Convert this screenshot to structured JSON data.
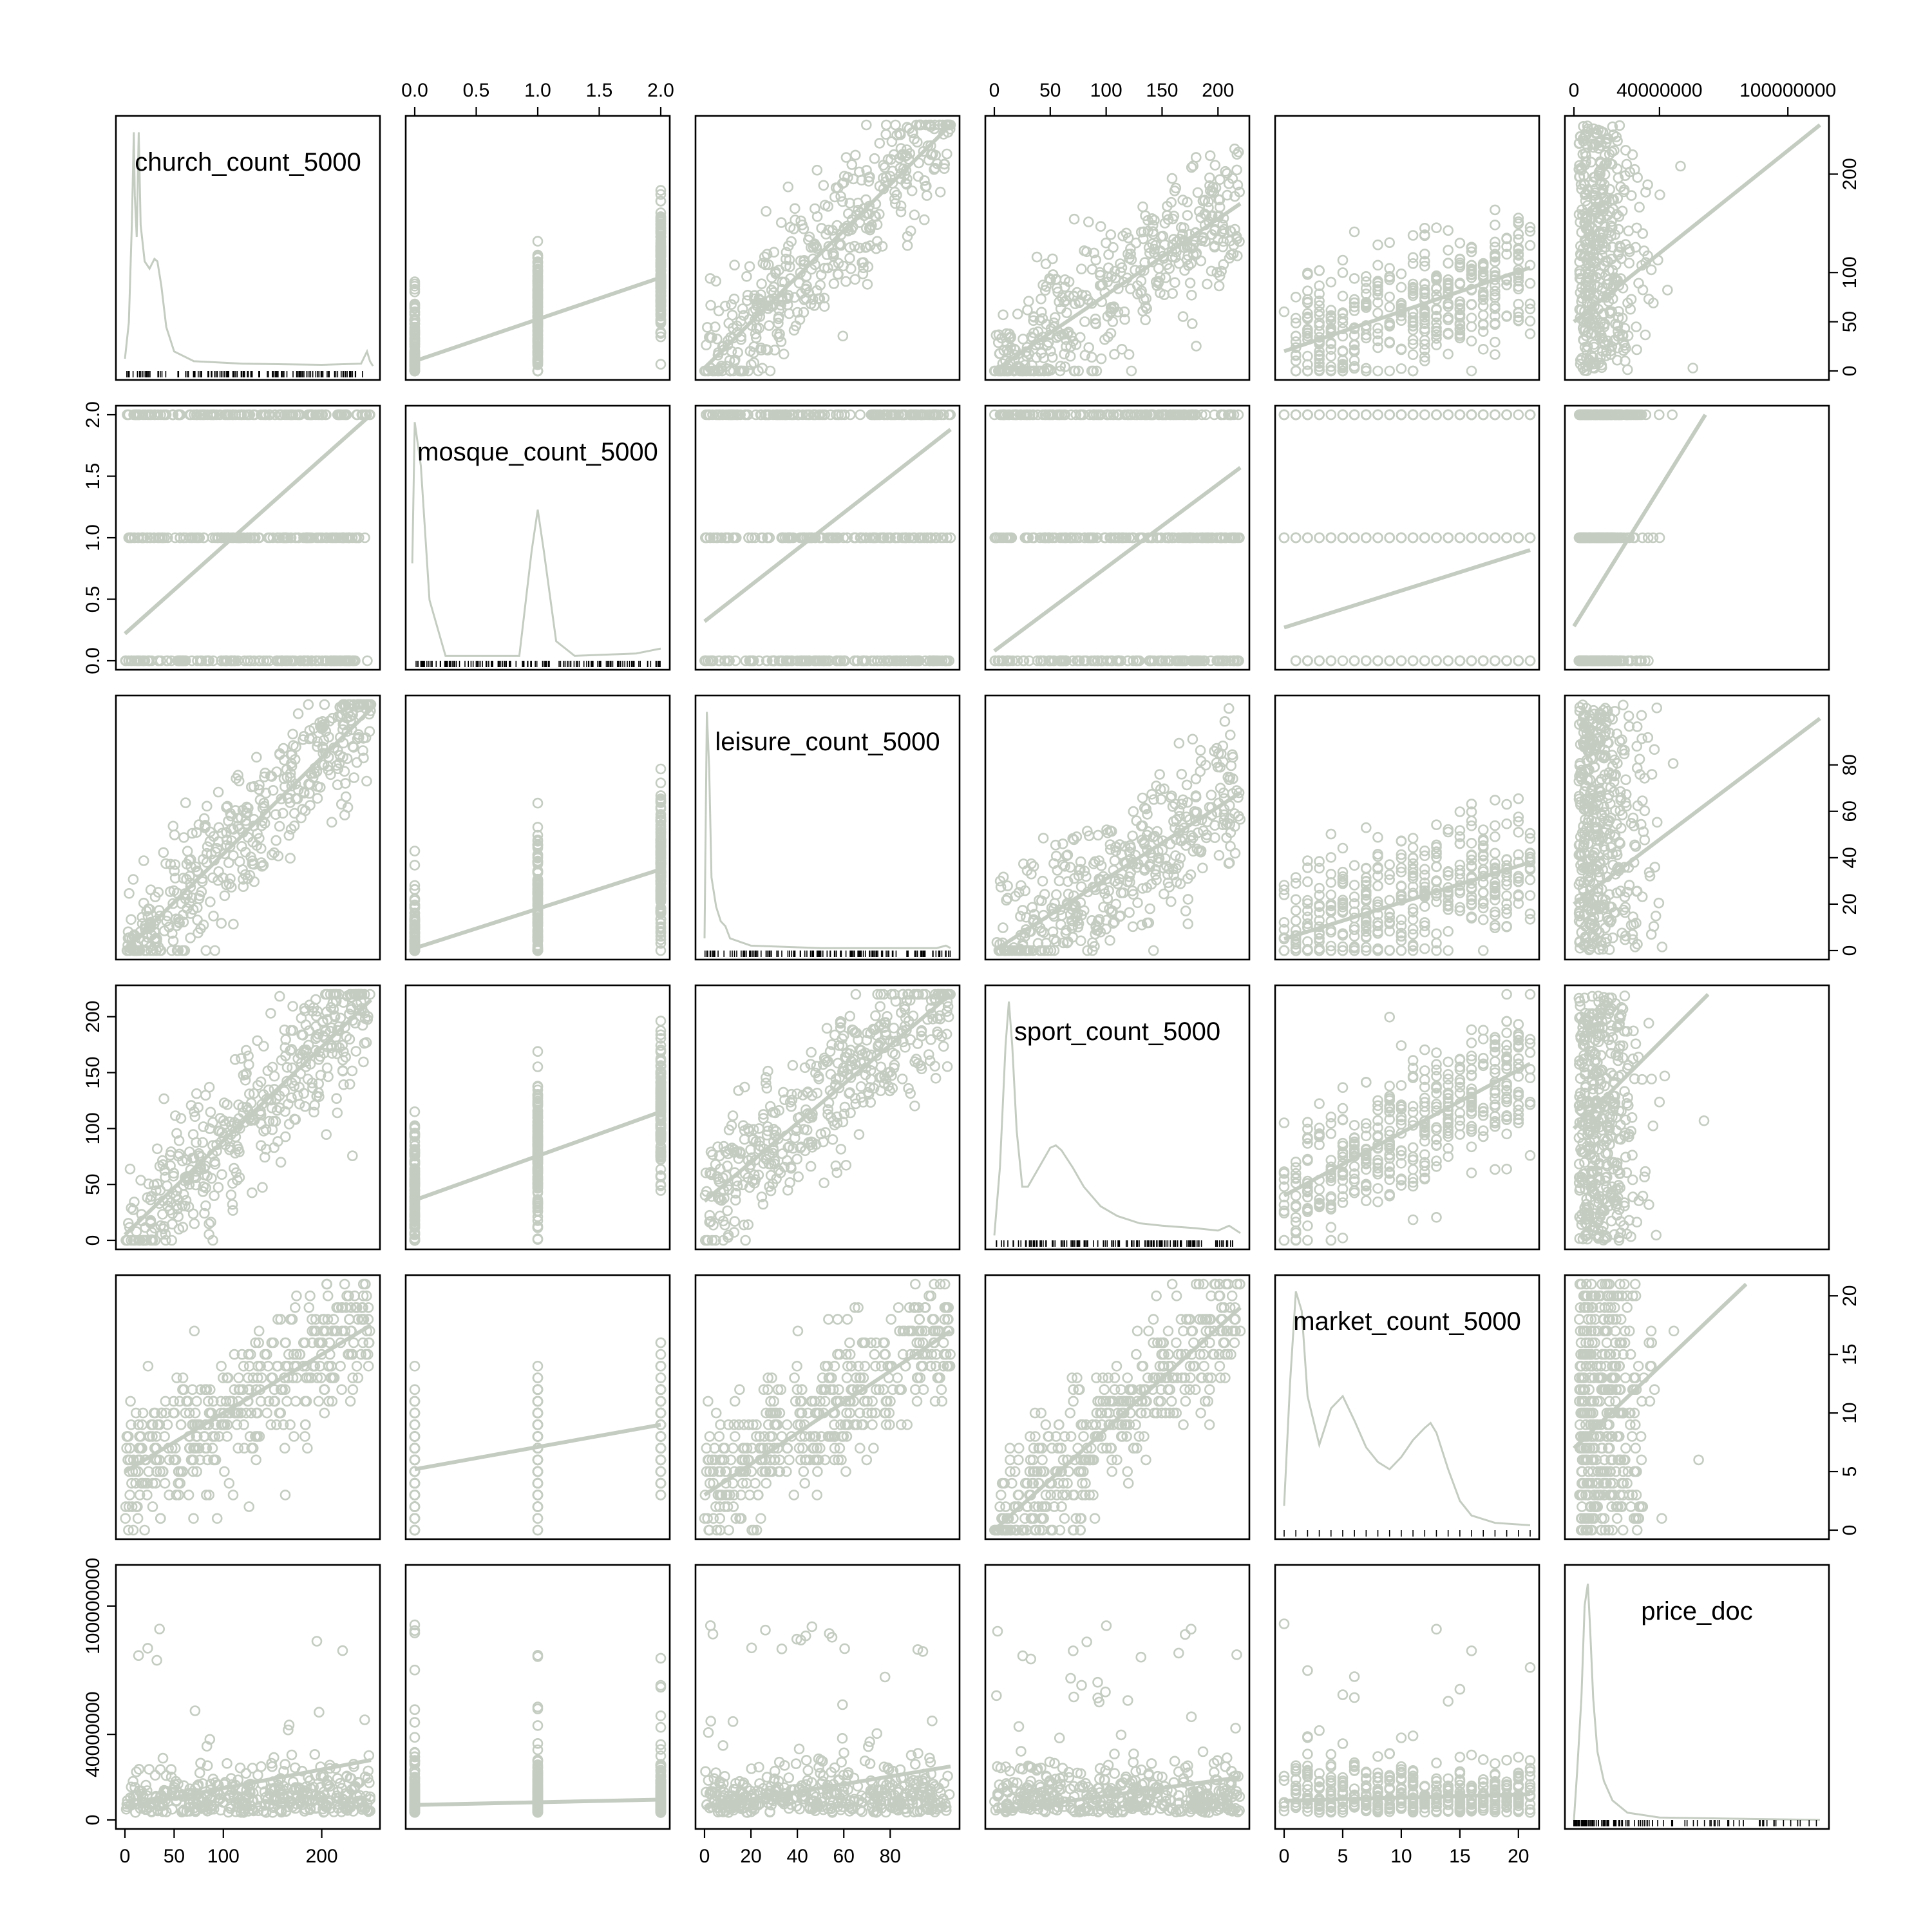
{
  "chart_data": {
    "type": "scatter_matrix",
    "variables": [
      {
        "name": "church_count_5000",
        "range": [
          0,
          250
        ],
        "ticks": [
          0,
          50,
          100,
          200
        ],
        "tick_labels": [
          "0",
          "50",
          "100",
          "200"
        ]
      },
      {
        "name": "mosque_count_5000",
        "range": [
          0,
          2
        ],
        "ticks": [
          0,
          0.5,
          1,
          1.5,
          2
        ],
        "tick_labels": [
          "0.0",
          "0.5",
          "1.0",
          "1.5",
          "2.0"
        ]
      },
      {
        "name": "leisure_count_5000",
        "range": [
          0,
          106
        ],
        "ticks": [
          0,
          20,
          40,
          60,
          80
        ],
        "tick_labels": [
          "0",
          "20",
          "40",
          "60",
          "80"
        ]
      },
      {
        "name": "sport_count_5000",
        "range": [
          0,
          220
        ],
        "ticks": [
          0,
          50,
          100,
          150,
          200
        ],
        "tick_labels": [
          "0",
          "50",
          "100",
          "150",
          "200"
        ]
      },
      {
        "name": "market_count_5000",
        "range": [
          0,
          21
        ],
        "ticks": [
          0,
          5,
          10,
          15,
          20
        ],
        "tick_labels": [
          "0",
          "5",
          "10",
          "15",
          "20"
        ]
      },
      {
        "name": "price_doc",
        "range": [
          0,
          115000000
        ],
        "ticks": [
          0,
          40000000,
          100000000
        ],
        "tick_labels": [
          "0",
          "40000000",
          "100000000"
        ]
      }
    ],
    "point_color": "#c4ccc1",
    "fit_color": "#c4ccc1",
    "density_color": "#c4ccc1",
    "fits": [
      {
        "x": "church_count_5000",
        "y": "mosque_count_5000",
        "y_at_min": 0.22,
        "y_at_max": 2.0
      },
      {
        "x": "church_count_5000",
        "y": "leisure_count_5000",
        "y_at_min": 0,
        "y_at_max": 104
      },
      {
        "x": "church_count_5000",
        "y": "sport_count_5000",
        "y_at_min": 5,
        "y_at_max": 215
      },
      {
        "x": "church_count_5000",
        "y": "market_count_5000",
        "y_at_min": 5,
        "y_at_max": 17.5
      },
      {
        "x": "church_count_5000",
        "y": "price_doc",
        "y_at_min": 6000000,
        "y_at_max": 28000000
      },
      {
        "x": "mosque_count_5000",
        "y": "church_count_5000",
        "y_at_min": 10,
        "y_at_max": 95
      },
      {
        "x": "mosque_count_5000",
        "y": "leisure_count_5000",
        "y_at_min": 1,
        "y_at_max": 35
      },
      {
        "x": "mosque_count_5000",
        "y": "sport_count_5000",
        "y_at_min": 36,
        "y_at_max": 115
      },
      {
        "x": "mosque_count_5000",
        "y": "market_count_5000",
        "y_at_min": 5.2,
        "y_at_max": 9
      },
      {
        "x": "mosque_count_5000",
        "y": "price_doc",
        "y_at_min": 7000000,
        "y_at_max": 9500000
      },
      {
        "x": "leisure_count_5000",
        "y": "church_count_5000",
        "y_at_min": 3,
        "y_at_max": 250
      },
      {
        "x": "leisure_count_5000",
        "y": "mosque_count_5000",
        "y_at_min": 0.32,
        "y_at_max": 1.88
      },
      {
        "x": "leisure_count_5000",
        "y": "sport_count_5000",
        "y_at_min": 35,
        "y_at_max": 220
      },
      {
        "x": "leisure_count_5000",
        "y": "market_count_5000",
        "y_at_min": 3,
        "y_at_max": 17
      },
      {
        "x": "leisure_count_5000",
        "y": "price_doc",
        "y_at_min": 6000000,
        "y_at_max": 25000000
      },
      {
        "x": "sport_count_5000",
        "y": "church_count_5000",
        "y_at_min": -5,
        "y_at_max": 170
      },
      {
        "x": "sport_count_5000",
        "y": "mosque_count_5000",
        "y_at_min": 0.08,
        "y_at_max": 1.57
      },
      {
        "x": "sport_count_5000",
        "y": "leisure_count_5000",
        "y_at_min": -3,
        "y_at_max": 68
      },
      {
        "x": "sport_count_5000",
        "y": "market_count_5000",
        "y_at_min": 0,
        "y_at_max": 19
      },
      {
        "x": "sport_count_5000",
        "y": "price_doc",
        "y_at_min": 4000000,
        "y_at_max": 20000000
      },
      {
        "x": "market_count_5000",
        "y": "church_count_5000",
        "y_at_min": 20,
        "y_at_max": 105
      },
      {
        "x": "market_count_5000",
        "y": "mosque_count_5000",
        "y_at_min": 0.27,
        "y_at_max": 0.9
      },
      {
        "x": "market_count_5000",
        "y": "leisure_count_5000",
        "y_at_min": 5,
        "y_at_max": 38
      },
      {
        "x": "market_count_5000",
        "y": "sport_count_5000",
        "y_at_min": 40,
        "y_at_max": 158
      },
      {
        "x": "market_count_5000",
        "y": "price_doc",
        "y_at_min": 9000000,
        "y_at_max": 12000000
      },
      {
        "x": "price_doc",
        "y": "church_count_5000",
        "y_at_min": 50,
        "y_at_max": 250
      },
      {
        "x": "price_doc",
        "y": "mosque_count_5000",
        "y_at_min": 0.28,
        "y_at_max": 3.5
      },
      {
        "x": "price_doc",
        "y": "leisure_count_5000",
        "y_at_min": 20,
        "y_at_max": 100
      },
      {
        "x": "price_doc",
        "y": "sport_count_5000",
        "y_at_min": 100,
        "y_at_max": 320
      },
      {
        "x": "price_doc",
        "y": "market_count_5000",
        "y_at_min": 7,
        "y_at_max": 27
      }
    ],
    "densities": [
      {
        "variable": "church_count_5000",
        "points": [
          [
            0,
            0.05
          ],
          [
            4,
            0.2
          ],
          [
            7,
            0.6
          ],
          [
            9,
            0.98
          ],
          [
            10,
            0.72
          ],
          [
            12,
            0.55
          ],
          [
            14,
            0.98
          ],
          [
            16,
            0.6
          ],
          [
            20,
            0.45
          ],
          [
            25,
            0.42
          ],
          [
            30,
            0.46
          ],
          [
            33,
            0.45
          ],
          [
            37,
            0.35
          ],
          [
            42,
            0.18
          ],
          [
            50,
            0.08
          ],
          [
            70,
            0.04
          ],
          [
            120,
            0.03
          ],
          [
            200,
            0.025
          ],
          [
            240,
            0.03
          ],
          [
            246,
            0.08
          ],
          [
            249,
            0.04
          ],
          [
            252,
            0.02
          ]
        ]
      },
      {
        "variable": "mosque_count_5000",
        "points": [
          [
            -0.02,
            0.4
          ],
          [
            0,
            0.98
          ],
          [
            0.05,
            0.8
          ],
          [
            0.12,
            0.25
          ],
          [
            0.25,
            0.02
          ],
          [
            0.85,
            0.02
          ],
          [
            0.95,
            0.45
          ],
          [
            1.0,
            0.62
          ],
          [
            1.05,
            0.45
          ],
          [
            1.15,
            0.08
          ],
          [
            1.3,
            0.02
          ],
          [
            1.8,
            0.03
          ],
          [
            2.0,
            0.05
          ]
        ]
      },
      {
        "variable": "leisure_count_5000",
        "points": [
          [
            0,
            0.05
          ],
          [
            1,
            0.98
          ],
          [
            2,
            0.75
          ],
          [
            3,
            0.3
          ],
          [
            5,
            0.18
          ],
          [
            7,
            0.12
          ],
          [
            9,
            0.1
          ],
          [
            11,
            0.05
          ],
          [
            20,
            0.02
          ],
          [
            50,
            0.01
          ],
          [
            100,
            0.01
          ],
          [
            104,
            0.02
          ],
          [
            106,
            0.01
          ]
        ]
      },
      {
        "variable": "sport_count_5000",
        "points": [
          [
            0,
            0.02
          ],
          [
            5,
            0.3
          ],
          [
            10,
            0.8
          ],
          [
            13,
            0.98
          ],
          [
            16,
            0.8
          ],
          [
            20,
            0.45
          ],
          [
            25,
            0.22
          ],
          [
            30,
            0.22
          ],
          [
            40,
            0.3
          ],
          [
            50,
            0.38
          ],
          [
            55,
            0.39
          ],
          [
            60,
            0.37
          ],
          [
            70,
            0.3
          ],
          [
            80,
            0.22
          ],
          [
            95,
            0.14
          ],
          [
            110,
            0.1
          ],
          [
            130,
            0.07
          ],
          [
            150,
            0.06
          ],
          [
            180,
            0.05
          ],
          [
            200,
            0.04
          ],
          [
            210,
            0.06
          ],
          [
            220,
            0.03
          ]
        ]
      },
      {
        "variable": "market_count_5000",
        "points": [
          [
            0,
            0.1
          ],
          [
            0.5,
            0.6
          ],
          [
            1,
            0.98
          ],
          [
            1.5,
            0.9
          ],
          [
            2,
            0.55
          ],
          [
            3,
            0.35
          ],
          [
            4,
            0.5
          ],
          [
            5,
            0.55
          ],
          [
            6,
            0.45
          ],
          [
            7,
            0.34
          ],
          [
            8,
            0.28
          ],
          [
            9,
            0.25
          ],
          [
            10,
            0.3
          ],
          [
            11,
            0.37
          ],
          [
            12,
            0.42
          ],
          [
            12.5,
            0.44
          ],
          [
            13,
            0.4
          ],
          [
            14,
            0.25
          ],
          [
            15,
            0.12
          ],
          [
            16,
            0.06
          ],
          [
            18,
            0.03
          ],
          [
            21,
            0.02
          ]
        ]
      },
      {
        "variable": "price_doc",
        "points": [
          [
            0,
            0.0
          ],
          [
            1500000,
            0.2
          ],
          [
            3500000,
            0.5
          ],
          [
            5000000,
            0.88
          ],
          [
            6500000,
            0.97
          ],
          [
            7500000,
            0.8
          ],
          [
            9000000,
            0.5
          ],
          [
            11000000,
            0.28
          ],
          [
            14000000,
            0.16
          ],
          [
            18000000,
            0.08
          ],
          [
            25000000,
            0.03
          ],
          [
            40000000,
            0.01
          ],
          [
            115000000,
            0.0
          ]
        ]
      }
    ]
  }
}
